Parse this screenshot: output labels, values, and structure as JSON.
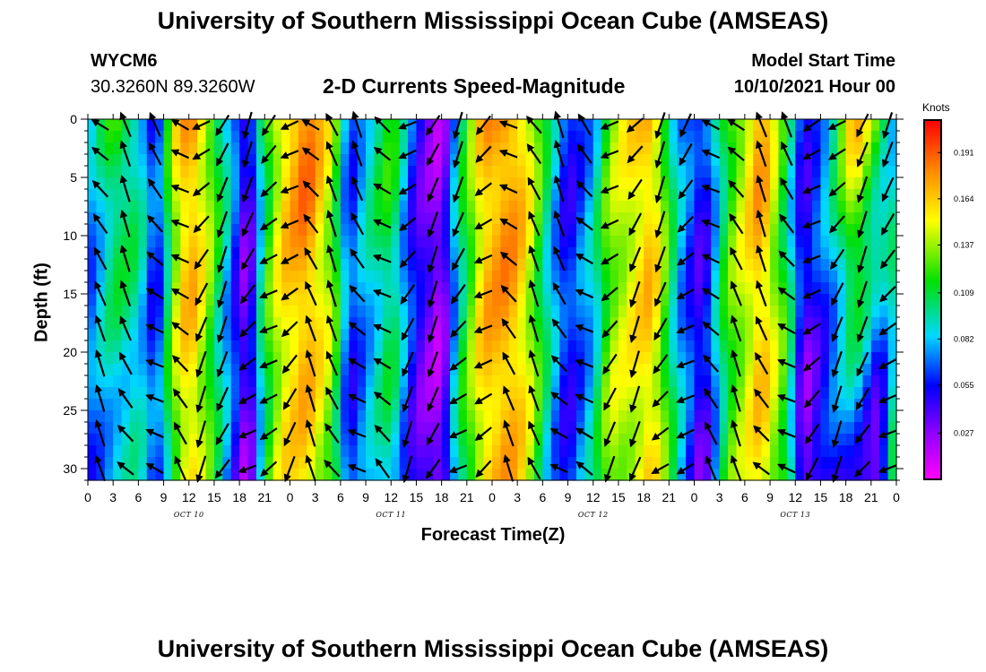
{
  "header": {
    "title": "University of Southern Mississippi Ocean Cube (AMSEAS)",
    "station": "WYCM6",
    "coords": "30.3260N  89.3260W",
    "subtitle": "2-D Currents Speed-Magnitude",
    "model_label": "Model Start Time",
    "model_time": "10/10/2021 Hour 00",
    "footer_title": "University of Southern Mississippi Ocean Cube (AMSEAS)"
  },
  "chart_data": {
    "type": "heatmap",
    "title": "2-D Currents Speed-Magnitude",
    "xlabel": "Forecast Time(Z)",
    "ylabel": "Depth (ft)",
    "xlim": [
      0,
      96
    ],
    "ylim": [
      31,
      0
    ],
    "x_tick_labels": [
      "0",
      "3",
      "6",
      "9",
      "12",
      "15",
      "18",
      "21",
      "0",
      "3",
      "6",
      "9",
      "12",
      "15",
      "18",
      "21",
      "0",
      "3",
      "6",
      "9",
      "12",
      "15",
      "18",
      "21",
      "0",
      "3",
      "6",
      "9",
      "12",
      "15",
      "18",
      "21",
      "0"
    ],
    "y_ticks": [
      0,
      5,
      10,
      15,
      20,
      25,
      30
    ],
    "day_labels": [
      {
        "label": "OCT 10",
        "hour": 12
      },
      {
        "label": "OCT 11",
        "hour": 36
      },
      {
        "label": "OCT 12",
        "hour": 60
      },
      {
        "label": "OCT 13",
        "hour": 84
      }
    ],
    "colorbar": {
      "units": "Knots",
      "min": 0.0,
      "max": 0.21,
      "tick_values": [
        "0.191",
        "0.164",
        "0.137",
        "0.109",
        "0.082",
        "0.055",
        "0.027"
      ]
    },
    "speed_profile": {
      "hours": [
        0,
        3,
        6,
        8,
        9,
        10,
        12,
        14,
        17,
        19,
        21,
        23,
        26,
        29,
        31,
        33,
        36,
        39,
        42,
        44,
        47,
        50,
        52,
        55,
        57,
        60,
        62,
        64,
        67,
        70,
        73,
        76,
        78,
        80,
        83,
        85,
        88,
        91,
        94,
        96
      ],
      "surface_knots": [
        0.07,
        0.12,
        0.1,
        0.05,
        0.08,
        0.14,
        0.18,
        0.15,
        0.08,
        0.03,
        0.11,
        0.16,
        0.19,
        0.14,
        0.06,
        0.09,
        0.12,
        0.05,
        0.02,
        0.09,
        0.17,
        0.18,
        0.16,
        0.09,
        0.05,
        0.08,
        0.13,
        0.15,
        0.17,
        0.08,
        0.05,
        0.12,
        0.15,
        0.18,
        0.1,
        0.05,
        0.09,
        0.17,
        0.12,
        0.08
      ],
      "bottom_knots": [
        0.06,
        0.08,
        0.09,
        0.06,
        0.08,
        0.12,
        0.16,
        0.13,
        0.06,
        0.02,
        0.11,
        0.15,
        0.16,
        0.13,
        0.05,
        0.07,
        0.1,
        0.04,
        0.02,
        0.1,
        0.16,
        0.17,
        0.15,
        0.08,
        0.05,
        0.09,
        0.14,
        0.14,
        0.16,
        0.09,
        0.03,
        0.12,
        0.14,
        0.16,
        0.12,
        0.02,
        0.05,
        0.06,
        0.02,
        0.12
      ]
    },
    "vector_columns_hours": [
      1.5,
      4.5,
      8,
      11,
      13.5,
      16,
      19,
      21.5,
      24,
      26.5,
      29,
      32,
      35,
      38,
      41,
      44,
      47,
      50,
      53,
      56,
      59,
      62,
      65,
      68,
      71,
      74,
      77,
      80,
      83,
      86,
      89,
      92,
      95
    ],
    "vector_rows_depth": [
      0.5,
      3,
      6,
      9,
      12,
      15,
      18,
      21,
      24,
      27,
      30
    ]
  }
}
